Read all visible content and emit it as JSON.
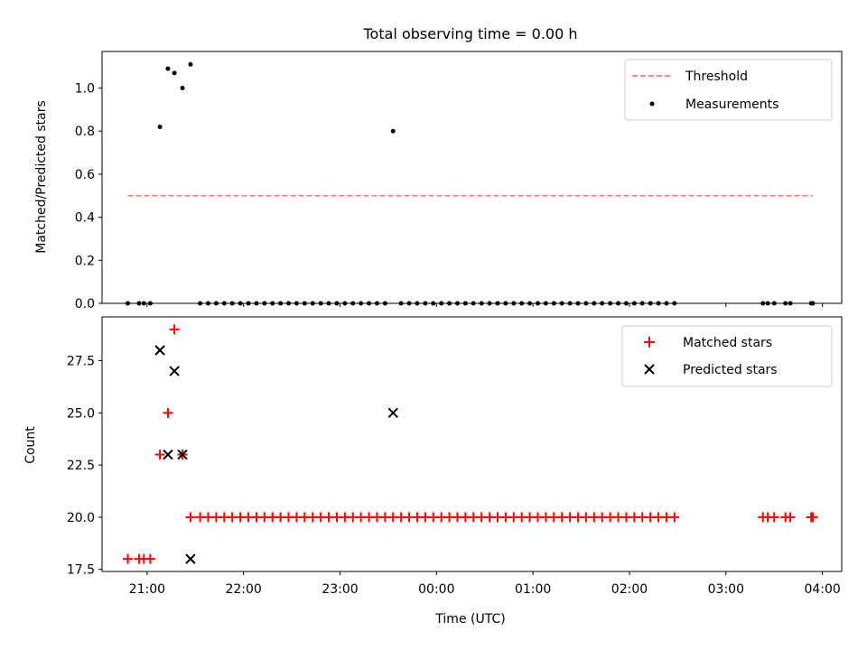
{
  "title": "Total observing time = 0.00 h",
  "chart_data": [
    {
      "type": "scatter",
      "ylabel": "Matched/Predicted stars",
      "xlim": [
        "20:32",
        "04:12"
      ],
      "ylim": [
        0,
        1.17
      ],
      "yticks": [
        "0.0",
        "0.2",
        "0.4",
        "0.6",
        "0.8",
        "1.0"
      ],
      "legend_position": "top-right",
      "threshold": {
        "name": "Threshold",
        "value": 0.5,
        "x_range": [
          "20:48",
          "03:54"
        ],
        "color": "#ff7f7f",
        "style": "dashed"
      },
      "series": [
        {
          "name": "Measurements",
          "marker": "dot",
          "color": "#000000",
          "points": [
            [
              "21:08",
              0.82
            ],
            [
              "21:13",
              1.09
            ],
            [
              "21:17",
              1.07
            ],
            [
              "21:22",
              1.0
            ],
            [
              "21:27",
              1.11
            ],
            [
              "23:33",
              0.8
            ],
            [
              "20:48",
              0.0
            ],
            [
              "20:55",
              0.0
            ],
            [
              "20:58",
              0.0
            ],
            [
              "21:02",
              0.0
            ],
            [
              "21:33",
              0.0
            ],
            [
              "21:38",
              0.0
            ],
            [
              "21:43",
              0.0
            ],
            [
              "21:48",
              0.0
            ],
            [
              "21:53",
              0.0
            ],
            [
              "21:58",
              0.0
            ],
            [
              "22:03",
              0.0
            ],
            [
              "22:08",
              0.0
            ],
            [
              "22:13",
              0.0
            ],
            [
              "22:18",
              0.0
            ],
            [
              "22:23",
              0.0
            ],
            [
              "22:28",
              0.0
            ],
            [
              "22:33",
              0.0
            ],
            [
              "22:38",
              0.0
            ],
            [
              "22:43",
              0.0
            ],
            [
              "22:48",
              0.0
            ],
            [
              "22:53",
              0.0
            ],
            [
              "22:58",
              0.0
            ],
            [
              "23:03",
              0.0
            ],
            [
              "23:08",
              0.0
            ],
            [
              "23:13",
              0.0
            ],
            [
              "23:18",
              0.0
            ],
            [
              "23:23",
              0.0
            ],
            [
              "23:28",
              0.0
            ],
            [
              "23:38",
              0.0
            ],
            [
              "23:43",
              0.0
            ],
            [
              "23:48",
              0.0
            ],
            [
              "23:53",
              0.0
            ],
            [
              "23:58",
              0.0
            ],
            [
              "00:03",
              0.0
            ],
            [
              "00:08",
              0.0
            ],
            [
              "00:13",
              0.0
            ],
            [
              "00:18",
              0.0
            ],
            [
              "00:23",
              0.0
            ],
            [
              "00:28",
              0.0
            ],
            [
              "00:33",
              0.0
            ],
            [
              "00:38",
              0.0
            ],
            [
              "00:43",
              0.0
            ],
            [
              "00:48",
              0.0
            ],
            [
              "00:53",
              0.0
            ],
            [
              "00:58",
              0.0
            ],
            [
              "01:03",
              0.0
            ],
            [
              "01:08",
              0.0
            ],
            [
              "01:13",
              0.0
            ],
            [
              "01:18",
              0.0
            ],
            [
              "01:23",
              0.0
            ],
            [
              "01:28",
              0.0
            ],
            [
              "01:33",
              0.0
            ],
            [
              "01:38",
              0.0
            ],
            [
              "01:43",
              0.0
            ],
            [
              "01:48",
              0.0
            ],
            [
              "01:53",
              0.0
            ],
            [
              "01:58",
              0.0
            ],
            [
              "02:03",
              0.0
            ],
            [
              "02:08",
              0.0
            ],
            [
              "02:13",
              0.0
            ],
            [
              "02:18",
              0.0
            ],
            [
              "02:23",
              0.0
            ],
            [
              "02:28",
              0.0
            ],
            [
              "03:23",
              0.0
            ],
            [
              "03:26",
              0.0
            ],
            [
              "03:30",
              0.0
            ],
            [
              "03:37",
              0.0
            ],
            [
              "03:40",
              0.0
            ],
            [
              "03:53",
              0.0
            ],
            [
              "03:54",
              0.0
            ]
          ]
        }
      ]
    },
    {
      "type": "scatter",
      "xlabel": "Time (UTC)",
      "ylabel": "Count",
      "xlim": [
        "20:32",
        "04:12"
      ],
      "ylim": [
        17.4,
        29.6
      ],
      "xticks": [
        "21:00",
        "22:00",
        "23:00",
        "00:00",
        "01:00",
        "02:00",
        "03:00",
        "04:00"
      ],
      "yticks": [
        "17.5",
        "20.0",
        "22.5",
        "25.0",
        "27.5"
      ],
      "legend_position": "top-right",
      "series": [
        {
          "name": "Matched stars",
          "marker": "plus",
          "color": "#ff0000",
          "points": [
            [
              "20:48",
              18
            ],
            [
              "20:55",
              18
            ],
            [
              "20:58",
              18
            ],
            [
              "21:02",
              18
            ],
            [
              "21:08",
              23
            ],
            [
              "21:13",
              25
            ],
            [
              "21:17",
              29
            ],
            [
              "21:22",
              23
            ],
            [
              "21:27",
              20
            ],
            [
              "21:33",
              20
            ],
            [
              "21:38",
              20
            ],
            [
              "21:43",
              20
            ],
            [
              "21:48",
              20
            ],
            [
              "21:53",
              20
            ],
            [
              "21:58",
              20
            ],
            [
              "22:03",
              20
            ],
            [
              "22:08",
              20
            ],
            [
              "22:13",
              20
            ],
            [
              "22:18",
              20
            ],
            [
              "22:23",
              20
            ],
            [
              "22:28",
              20
            ],
            [
              "22:33",
              20
            ],
            [
              "22:38",
              20
            ],
            [
              "22:43",
              20
            ],
            [
              "22:48",
              20
            ],
            [
              "22:53",
              20
            ],
            [
              "22:58",
              20
            ],
            [
              "23:03",
              20
            ],
            [
              "23:08",
              20
            ],
            [
              "23:13",
              20
            ],
            [
              "23:18",
              20
            ],
            [
              "23:23",
              20
            ],
            [
              "23:28",
              20
            ],
            [
              "23:33",
              20
            ],
            [
              "23:38",
              20
            ],
            [
              "23:43",
              20
            ],
            [
              "23:48",
              20
            ],
            [
              "23:53",
              20
            ],
            [
              "23:58",
              20
            ],
            [
              "00:03",
              20
            ],
            [
              "00:08",
              20
            ],
            [
              "00:13",
              20
            ],
            [
              "00:18",
              20
            ],
            [
              "00:23",
              20
            ],
            [
              "00:28",
              20
            ],
            [
              "00:33",
              20
            ],
            [
              "00:38",
              20
            ],
            [
              "00:43",
              20
            ],
            [
              "00:48",
              20
            ],
            [
              "00:53",
              20
            ],
            [
              "00:58",
              20
            ],
            [
              "01:03",
              20
            ],
            [
              "01:08",
              20
            ],
            [
              "01:13",
              20
            ],
            [
              "01:18",
              20
            ],
            [
              "01:23",
              20
            ],
            [
              "01:28",
              20
            ],
            [
              "01:33",
              20
            ],
            [
              "01:38",
              20
            ],
            [
              "01:43",
              20
            ],
            [
              "01:48",
              20
            ],
            [
              "01:53",
              20
            ],
            [
              "01:58",
              20
            ],
            [
              "02:03",
              20
            ],
            [
              "02:08",
              20
            ],
            [
              "02:13",
              20
            ],
            [
              "02:18",
              20
            ],
            [
              "02:23",
              20
            ],
            [
              "02:28",
              20
            ],
            [
              "03:23",
              20
            ],
            [
              "03:26",
              20
            ],
            [
              "03:30",
              20
            ],
            [
              "03:37",
              20
            ],
            [
              "03:40",
              20
            ],
            [
              "03:53",
              20
            ],
            [
              "03:54",
              20
            ]
          ]
        },
        {
          "name": "Predicted stars",
          "marker": "x",
          "color": "#000000",
          "points": [
            [
              "21:08",
              28
            ],
            [
              "21:13",
              23
            ],
            [
              "21:17",
              27
            ],
            [
              "21:22",
              23
            ],
            [
              "21:27",
              18
            ],
            [
              "23:33",
              25
            ]
          ]
        }
      ]
    }
  ]
}
